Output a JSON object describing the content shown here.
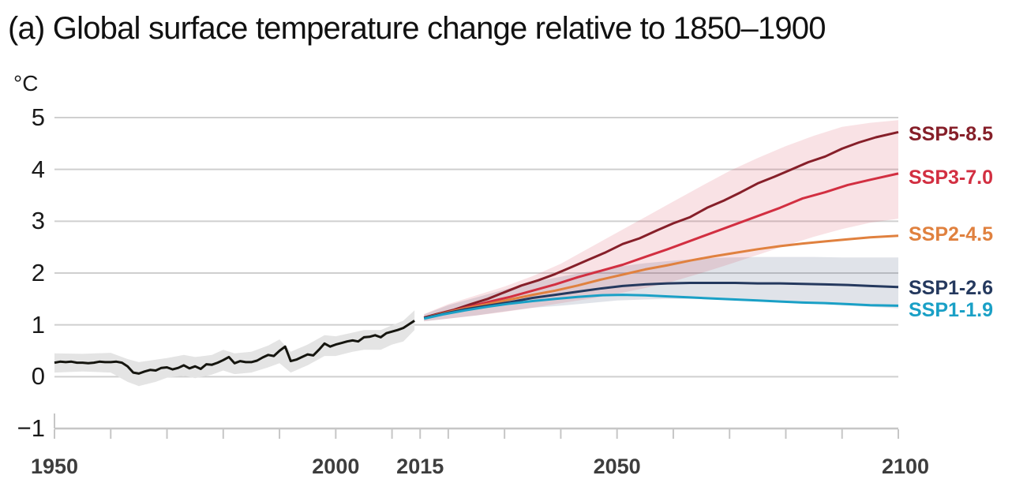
{
  "title": "(a) Global surface temperature change relative to 1850–1900",
  "y_axis": {
    "unit": "°C",
    "tick_labels": [
      "5",
      "4",
      "3",
      "2",
      "1",
      "0",
      "−1"
    ],
    "tick_values": [
      5,
      4,
      3,
      2,
      1,
      0,
      -1
    ]
  },
  "x_axis": {
    "tick_years_labeled": [
      1950,
      2000,
      2015,
      2050,
      2100
    ],
    "tick_years_all": [
      1950,
      1960,
      1970,
      1980,
      1990,
      2000,
      2010,
      2015,
      2020,
      2030,
      2040,
      2050,
      2060,
      2070,
      2080,
      2090,
      2100
    ]
  },
  "colors": {
    "grid": "#cfcfcf",
    "axis": "#c6c6c6",
    "title_text": "#111111",
    "x_label_text": "#3d3d3d",
    "y_label_text": "#1a1a1a",
    "historical_line": "#15150f",
    "historical_band": "#e4e4e4",
    "ssp5_85": "#861f29",
    "ssp3_70": "#d22f41",
    "ssp2_45": "#e0813f",
    "ssp1_26": "#25395e",
    "ssp1_19": "#1aa0c6",
    "ssp3_70_band": "#d63e5026",
    "ssp1_26_band": "#3c507829"
  },
  "chart_data": {
    "type": "line",
    "title": "(a) Global surface temperature change relative to 1850–1900",
    "xlabel": "",
    "ylabel": "°C",
    "xlim": [
      1950,
      2100
    ],
    "ylim": [
      -1,
      5
    ],
    "grid": "horizontal",
    "legend_position": "right-of-line-ends",
    "y_ticks": [
      5,
      4,
      3,
      2,
      1,
      0,
      -1
    ],
    "series": [
      {
        "name": "Historical",
        "color": "#15150f",
        "points": [
          [
            1950,
            0.27
          ],
          [
            1951,
            0.29
          ],
          [
            1952,
            0.28
          ],
          [
            1953,
            0.29
          ],
          [
            1954,
            0.27
          ],
          [
            1955,
            0.27
          ],
          [
            1956,
            0.26
          ],
          [
            1957,
            0.27
          ],
          [
            1958,
            0.29
          ],
          [
            1959,
            0.28
          ],
          [
            1960,
            0.28
          ],
          [
            1961,
            0.29
          ],
          [
            1962,
            0.27
          ],
          [
            1963,
            0.2
          ],
          [
            1964,
            0.08
          ],
          [
            1965,
            0.06
          ],
          [
            1966,
            0.1
          ],
          [
            1967,
            0.13
          ],
          [
            1968,
            0.12
          ],
          [
            1969,
            0.17
          ],
          [
            1970,
            0.18
          ],
          [
            1971,
            0.14
          ],
          [
            1972,
            0.17
          ],
          [
            1973,
            0.22
          ],
          [
            1974,
            0.16
          ],
          [
            1975,
            0.2
          ],
          [
            1976,
            0.15
          ],
          [
            1977,
            0.24
          ],
          [
            1978,
            0.23
          ],
          [
            1979,
            0.27
          ],
          [
            1980,
            0.32
          ],
          [
            1981,
            0.38
          ],
          [
            1982,
            0.26
          ],
          [
            1983,
            0.3
          ],
          [
            1984,
            0.28
          ],
          [
            1985,
            0.28
          ],
          [
            1986,
            0.31
          ],
          [
            1987,
            0.37
          ],
          [
            1988,
            0.42
          ],
          [
            1989,
            0.4
          ],
          [
            1990,
            0.5
          ],
          [
            1991,
            0.58
          ],
          [
            1992,
            0.3
          ],
          [
            1993,
            0.33
          ],
          [
            1994,
            0.38
          ],
          [
            1995,
            0.43
          ],
          [
            1996,
            0.41
          ],
          [
            1997,
            0.52
          ],
          [
            1998,
            0.64
          ],
          [
            1999,
            0.58
          ],
          [
            2000,
            0.62
          ],
          [
            2001,
            0.65
          ],
          [
            2002,
            0.68
          ],
          [
            2003,
            0.7
          ],
          [
            2004,
            0.68
          ],
          [
            2005,
            0.76
          ],
          [
            2006,
            0.77
          ],
          [
            2007,
            0.8
          ],
          [
            2008,
            0.76
          ],
          [
            2009,
            0.84
          ],
          [
            2010,
            0.87
          ],
          [
            2011,
            0.9
          ],
          [
            2012,
            0.94
          ],
          [
            2013,
            1.01
          ],
          [
            2014,
            1.08
          ]
        ],
        "band": {
          "color": "#e4e4e4",
          "points": [
            [
              1950,
              0.08,
              0.45
            ],
            [
              1955,
              0.1,
              0.44
            ],
            [
              1960,
              0.08,
              0.46
            ],
            [
              1963,
              -0.1,
              0.34
            ],
            [
              1965,
              -0.18,
              0.28
            ],
            [
              1968,
              -0.1,
              0.33
            ],
            [
              1970,
              -0.02,
              0.36
            ],
            [
              1973,
              0.02,
              0.42
            ],
            [
              1975,
              -0.03,
              0.38
            ],
            [
              1978,
              0.04,
              0.42
            ],
            [
              1980,
              0.12,
              0.52
            ],
            [
              1982,
              0.05,
              0.45
            ],
            [
              1985,
              0.08,
              0.48
            ],
            [
              1988,
              0.18,
              0.6
            ],
            [
              1990,
              0.26,
              0.72
            ],
            [
              1992,
              0.08,
              0.48
            ],
            [
              1995,
              0.22,
              0.62
            ],
            [
              1998,
              0.4,
              0.8
            ],
            [
              2000,
              0.4,
              0.78
            ],
            [
              2003,
              0.48,
              0.85
            ],
            [
              2005,
              0.52,
              0.9
            ],
            [
              2008,
              0.52,
              0.9
            ],
            [
              2010,
              0.62,
              0.99
            ],
            [
              2012,
              0.68,
              1.08
            ],
            [
              2014,
              0.9,
              1.28
            ]
          ]
        }
      },
      {
        "name": "SSP5-8.5",
        "color": "#861f29",
        "value_2100": 4.7,
        "points": [
          [
            2015.7,
            1.14
          ],
          [
            2018,
            1.21
          ],
          [
            2021,
            1.29
          ],
          [
            2024,
            1.4
          ],
          [
            2027,
            1.5
          ],
          [
            2030,
            1.63
          ],
          [
            2033,
            1.76
          ],
          [
            2036,
            1.86
          ],
          [
            2039,
            1.98
          ],
          [
            2042,
            2.12
          ],
          [
            2045,
            2.26
          ],
          [
            2048,
            2.4
          ],
          [
            2051,
            2.56
          ],
          [
            2054,
            2.67
          ],
          [
            2057,
            2.82
          ],
          [
            2060,
            2.96
          ],
          [
            2063,
            3.08
          ],
          [
            2066,
            3.26
          ],
          [
            2069,
            3.4
          ],
          [
            2072,
            3.56
          ],
          [
            2075,
            3.73
          ],
          [
            2078,
            3.86
          ],
          [
            2081,
            4.0
          ],
          [
            2084,
            4.14
          ],
          [
            2087,
            4.25
          ],
          [
            2090,
            4.4
          ],
          [
            2093,
            4.52
          ],
          [
            2096,
            4.62
          ],
          [
            2100,
            4.72
          ]
        ]
      },
      {
        "name": "SSP3-7.0",
        "color": "#d22f41",
        "value_2100": 3.9,
        "points": [
          [
            2015.7,
            1.13
          ],
          [
            2019,
            1.22
          ],
          [
            2023,
            1.33
          ],
          [
            2027,
            1.44
          ],
          [
            2031,
            1.54
          ],
          [
            2035,
            1.66
          ],
          [
            2039,
            1.78
          ],
          [
            2043,
            1.92
          ],
          [
            2047,
            2.04
          ],
          [
            2051,
            2.16
          ],
          [
            2055,
            2.31
          ],
          [
            2059,
            2.46
          ],
          [
            2063,
            2.62
          ],
          [
            2067,
            2.78
          ],
          [
            2071,
            2.94
          ],
          [
            2075,
            3.1
          ],
          [
            2079,
            3.26
          ],
          [
            2083,
            3.44
          ],
          [
            2087,
            3.56
          ],
          [
            2091,
            3.7
          ],
          [
            2095,
            3.8
          ],
          [
            2100,
            3.92
          ]
        ],
        "band": {
          "color": "#d63e5026",
          "points": [
            [
              2015.7,
              1.07,
              1.21
            ],
            [
              2020,
              1.12,
              1.4
            ],
            [
              2025,
              1.18,
              1.57
            ],
            [
              2030,
              1.25,
              1.74
            ],
            [
              2035,
              1.33,
              1.94
            ],
            [
              2040,
              1.42,
              2.18
            ],
            [
              2045,
              1.5,
              2.48
            ],
            [
              2050,
              1.6,
              2.78
            ],
            [
              2055,
              1.71,
              3.08
            ],
            [
              2060,
              1.84,
              3.38
            ],
            [
              2065,
              2.0,
              3.68
            ],
            [
              2070,
              2.17,
              3.97
            ],
            [
              2075,
              2.35,
              4.22
            ],
            [
              2080,
              2.53,
              4.45
            ],
            [
              2085,
              2.7,
              4.65
            ],
            [
              2090,
              2.85,
              4.82
            ],
            [
              2095,
              2.97,
              4.9
            ],
            [
              2100,
              3.05,
              4.95
            ]
          ]
        }
      },
      {
        "name": "SSP2-4.5",
        "color": "#e0813f",
        "value_2100": 2.7,
        "points": [
          [
            2015.7,
            1.13
          ],
          [
            2019,
            1.22
          ],
          [
            2023,
            1.32
          ],
          [
            2027,
            1.4
          ],
          [
            2031,
            1.49
          ],
          [
            2035,
            1.58
          ],
          [
            2039,
            1.66
          ],
          [
            2043,
            1.76
          ],
          [
            2047,
            1.87
          ],
          [
            2051,
            1.97
          ],
          [
            2055,
            2.07
          ],
          [
            2059,
            2.15
          ],
          [
            2063,
            2.24
          ],
          [
            2067,
            2.32
          ],
          [
            2071,
            2.39
          ],
          [
            2075,
            2.46
          ],
          [
            2079,
            2.52
          ],
          [
            2083,
            2.57
          ],
          [
            2087,
            2.61
          ],
          [
            2091,
            2.65
          ],
          [
            2095,
            2.69
          ],
          [
            2100,
            2.72
          ]
        ]
      },
      {
        "name": "SSP1-2.6",
        "color": "#25395e",
        "value_2100": 1.8,
        "points": [
          [
            2015.7,
            1.13
          ],
          [
            2019,
            1.21
          ],
          [
            2023,
            1.3
          ],
          [
            2027,
            1.37
          ],
          [
            2031,
            1.44
          ],
          [
            2035,
            1.52
          ],
          [
            2039,
            1.58
          ],
          [
            2043,
            1.64
          ],
          [
            2047,
            1.7
          ],
          [
            2051,
            1.75
          ],
          [
            2055,
            1.78
          ],
          [
            2059,
            1.8
          ],
          [
            2063,
            1.81
          ],
          [
            2067,
            1.81
          ],
          [
            2071,
            1.81
          ],
          [
            2075,
            1.8
          ],
          [
            2079,
            1.8
          ],
          [
            2083,
            1.79
          ],
          [
            2087,
            1.78
          ],
          [
            2091,
            1.77
          ],
          [
            2095,
            1.75
          ],
          [
            2100,
            1.73
          ]
        ],
        "band": {
          "color": "#3c507829",
          "points": [
            [
              2015.7,
              1.07,
              1.2
            ],
            [
              2020,
              1.12,
              1.38
            ],
            [
              2025,
              1.18,
              1.53
            ],
            [
              2030,
              1.26,
              1.68
            ],
            [
              2035,
              1.33,
              1.82
            ],
            [
              2040,
              1.37,
              1.93
            ],
            [
              2045,
              1.42,
              2.03
            ],
            [
              2050,
              1.47,
              2.12
            ],
            [
              2055,
              1.49,
              2.19
            ],
            [
              2060,
              1.5,
              2.24
            ],
            [
              2065,
              1.5,
              2.28
            ],
            [
              2070,
              1.49,
              2.3
            ],
            [
              2075,
              1.47,
              2.31
            ],
            [
              2080,
              1.44,
              2.31
            ],
            [
              2085,
              1.41,
              2.31
            ],
            [
              2090,
              1.38,
              2.3
            ],
            [
              2095,
              1.35,
              2.3
            ],
            [
              2100,
              1.32,
              2.3
            ]
          ]
        }
      },
      {
        "name": "SSP1-1.9",
        "color": "#1aa0c6",
        "value_2100": 1.4,
        "points": [
          [
            2015.7,
            1.12
          ],
          [
            2019,
            1.2
          ],
          [
            2023,
            1.28
          ],
          [
            2027,
            1.35
          ],
          [
            2031,
            1.41
          ],
          [
            2035,
            1.46
          ],
          [
            2039,
            1.5
          ],
          [
            2043,
            1.54
          ],
          [
            2047,
            1.57
          ],
          [
            2051,
            1.58
          ],
          [
            2055,
            1.57
          ],
          [
            2059,
            1.55
          ],
          [
            2063,
            1.53
          ],
          [
            2067,
            1.51
          ],
          [
            2071,
            1.49
          ],
          [
            2075,
            1.47
          ],
          [
            2079,
            1.45
          ],
          [
            2083,
            1.43
          ],
          [
            2087,
            1.42
          ],
          [
            2091,
            1.4
          ],
          [
            2095,
            1.38
          ],
          [
            2100,
            1.37
          ]
        ]
      }
    ],
    "legend": [
      {
        "label": "SSP5-8.5",
        "color": "#861f29",
        "anchor_value": 4.68
      },
      {
        "label": "SSP3-7.0",
        "color": "#d22f41",
        "anchor_value": 3.84
      },
      {
        "label": "SSP2-4.5",
        "color": "#e0813f",
        "anchor_value": 2.75
      },
      {
        "label": "SSP1-2.6",
        "color": "#25395e",
        "anchor_value": 1.71
      },
      {
        "label": "SSP1-1.9",
        "color": "#1aa0c6",
        "anchor_value": 1.28
      }
    ]
  }
}
